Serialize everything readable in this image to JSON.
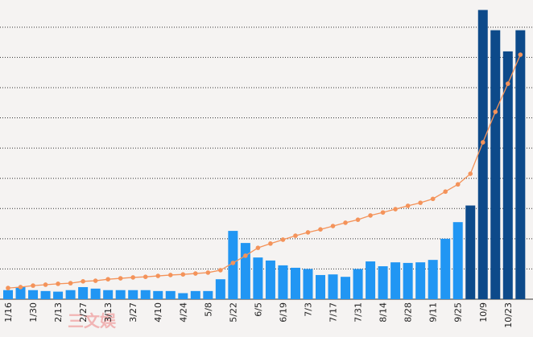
{
  "chart_data": {
    "type": "bar",
    "categories": [
      "1/16",
      null,
      "1/30",
      null,
      "2/13",
      null,
      "2/27",
      null,
      "3/13",
      null,
      "3/27",
      null,
      "4/10",
      null,
      "4/24",
      null,
      "5/8",
      null,
      "5/22",
      null,
      "6/5",
      null,
      "6/19",
      null,
      "7/3",
      null,
      "7/17",
      null,
      "7/31",
      null,
      "8/14",
      null,
      "8/28",
      null,
      "9/11",
      null,
      "9/25",
      null,
      "10/9",
      null,
      "10/23",
      null
    ],
    "series": [
      {
        "type": "bar",
        "colors": [
          "#2196f3",
          "#2196f3",
          "#2196f3",
          "#2196f3",
          "#2196f3",
          "#2196f3",
          "#2196f3",
          "#2196f3",
          "#2196f3",
          "#2196f3",
          "#2196f3",
          "#2196f3",
          "#2196f3",
          "#2196f3",
          "#2196f3",
          "#2196f3",
          "#2196f3",
          "#2196f3",
          "#2196f3",
          "#2196f3",
          "#2196f3",
          "#2196f3",
          "#2196f3",
          "#2196f3",
          "#2196f3",
          "#2196f3",
          "#2196f3",
          "#2196f3",
          "#2196f3",
          "#2196f3",
          "#2196f3",
          "#2196f3",
          "#2196f3",
          "#2196f3",
          "#2196f3",
          "#2196f3",
          "#2196f3",
          "#0d4a8a",
          "#0d4a8a",
          "#0d4a8a",
          "#0d4a8a",
          "#0d4a8a"
        ],
        "values": [
          0.3,
          0.4,
          0.3,
          0.27,
          0.25,
          0.3,
          0.4,
          0.35,
          0.3,
          0.3,
          0.3,
          0.3,
          0.27,
          0.27,
          0.2,
          0.27,
          0.27,
          0.66,
          2.26,
          1.86,
          1.38,
          1.28,
          1.12,
          1.04,
          1.0,
          0.8,
          0.82,
          0.74,
          1.0,
          1.25,
          1.09,
          1.22,
          1.2,
          1.22,
          1.3,
          2.0,
          2.55,
          3.1,
          9.57,
          8.9,
          8.2,
          8.9
        ]
      },
      {
        "type": "line",
        "color": "#f4935a",
        "values": [
          0.37,
          0.4,
          0.45,
          0.48,
          0.51,
          0.53,
          0.59,
          0.61,
          0.66,
          0.69,
          0.72,
          0.74,
          0.77,
          0.8,
          0.82,
          0.85,
          0.88,
          0.96,
          1.2,
          1.44,
          1.7,
          1.84,
          1.97,
          2.1,
          2.21,
          2.31,
          2.42,
          2.53,
          2.63,
          2.77,
          2.87,
          2.98,
          3.09,
          3.19,
          3.32,
          3.56,
          3.8,
          4.15,
          5.19,
          6.2,
          7.13,
          8.09
        ]
      }
    ],
    "ylim": [
      0,
      9.9
    ],
    "yticks": [
      1,
      2,
      3,
      4,
      5,
      6,
      7,
      8,
      9
    ],
    "grid": true,
    "watermark": "三文娱"
  }
}
